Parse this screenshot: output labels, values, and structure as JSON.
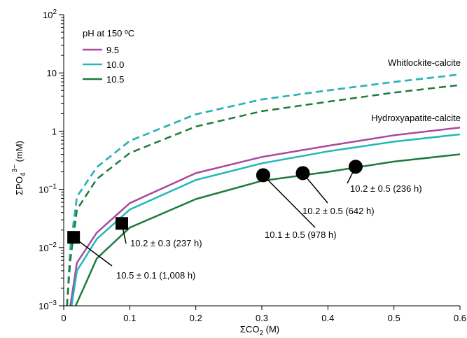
{
  "chart_data": {
    "type": "line",
    "xlabel_main": "ΣCO",
    "xlabel_sub": "2",
    "xlabel_unit": " (M)",
    "ylabel_main": "ΣPO",
    "ylabel_sub": "4",
    "ylabel_sup": "3−",
    "ylabel_unit": " (mM)",
    "xlim": [
      0,
      0.6
    ],
    "ylim": [
      0.001,
      100
    ],
    "yscale": "log",
    "x_ticks": [
      0,
      0.1,
      0.2,
      0.3,
      0.4,
      0.5,
      0.6
    ],
    "x_tick_labels": [
      "0",
      "0.1",
      "0.2",
      "0.3",
      "0.4",
      "0.5",
      "0.6"
    ],
    "y_ticks": [
      {
        "value": 0.001,
        "base": "10",
        "exp": "−3"
      },
      {
        "value": 0.01,
        "base": "10",
        "exp": "−2"
      },
      {
        "value": 0.1,
        "base": "10",
        "exp": "−1"
      },
      {
        "value": 1,
        "base": "1",
        "exp": ""
      },
      {
        "value": 10,
        "base": "10",
        "exp": ""
      },
      {
        "value": 100,
        "base": "10",
        "exp": "2"
      }
    ],
    "legend": {
      "title": "pH at 150 ºC",
      "entries": [
        {
          "label": "9.5",
          "color": "#a84aa0"
        },
        {
          "label": "10.0",
          "color": "#20b8b8"
        },
        {
          "label": "10.5",
          "color": "#1e7a3c"
        }
      ]
    },
    "curve_labels": {
      "whitlockite": "Whitlockite-calcite",
      "hydroxyapatite": "Hydroxyapatite-calcite"
    },
    "series": [
      {
        "name": "9.5",
        "color": "#a84aa0",
        "dashed": true,
        "x": [
          0.005,
          0.01,
          0.02,
          0.05,
          0.1,
          0.2,
          0.3,
          0.4,
          0.5,
          0.6
        ],
        "y": [
          0.001,
          0.01,
          0.075,
          0.24,
          0.68,
          1.95,
          3.5,
          5.0,
          7.0,
          9.4
        ]
      },
      {
        "name": "10.0",
        "color": "#20b8b8",
        "dashed": true,
        "x": [
          0.005,
          0.01,
          0.02,
          0.05,
          0.1,
          0.2,
          0.3,
          0.4,
          0.5,
          0.6
        ],
        "y": [
          0.001,
          0.01,
          0.075,
          0.24,
          0.68,
          1.95,
          3.5,
          5.0,
          7.0,
          9.4
        ]
      },
      {
        "name": "10.5",
        "color": "#1e7a3c",
        "dashed": true,
        "x": [
          0.005,
          0.01,
          0.02,
          0.05,
          0.1,
          0.2,
          0.3,
          0.4,
          0.5,
          0.6
        ],
        "y": [
          0.001,
          0.006,
          0.045,
          0.15,
          0.42,
          1.2,
          2.2,
          3.2,
          4.6,
          6.2
        ]
      },
      {
        "name": "9.5",
        "color": "#a84aa0",
        "dashed": false,
        "x": [
          0.01,
          0.02,
          0.05,
          0.1,
          0.2,
          0.3,
          0.4,
          0.5,
          0.6
        ],
        "y": [
          0.001,
          0.0055,
          0.018,
          0.058,
          0.19,
          0.36,
          0.56,
          0.85,
          1.15
        ]
      },
      {
        "name": "10.0",
        "color": "#20b8b8",
        "dashed": false,
        "x": [
          0.012,
          0.02,
          0.05,
          0.1,
          0.2,
          0.3,
          0.4,
          0.5,
          0.6
        ],
        "y": [
          0.001,
          0.004,
          0.014,
          0.045,
          0.145,
          0.28,
          0.45,
          0.66,
          0.88
        ]
      },
      {
        "name": "10.5",
        "color": "#1e7a3c",
        "dashed": false,
        "x": [
          0.018,
          0.03,
          0.05,
          0.1,
          0.2,
          0.3,
          0.4,
          0.5,
          0.6
        ],
        "y": [
          0.001,
          0.002,
          0.0065,
          0.022,
          0.068,
          0.14,
          0.2,
          0.3,
          0.4
        ]
      }
    ],
    "measurements": [
      {
        "marker": "square",
        "x": 0.015,
        "y": 0.015,
        "label": "10.5 ± 0.1 (1,008 h)"
      },
      {
        "marker": "square",
        "x": 0.088,
        "y": 0.026,
        "label": "10.2 ± 0.3 (237 h)"
      },
      {
        "marker": "circle",
        "x": 0.302,
        "y": 0.175,
        "label": "10.1 ± 0.5 (978 h)"
      },
      {
        "marker": "circle",
        "x": 0.362,
        "y": 0.19,
        "label": "10.2 ± 0.5 (642 h)"
      },
      {
        "marker": "circle",
        "x": 0.442,
        "y": 0.245,
        "label": "10.2 ± 0.5 (236 h)"
      }
    ]
  }
}
